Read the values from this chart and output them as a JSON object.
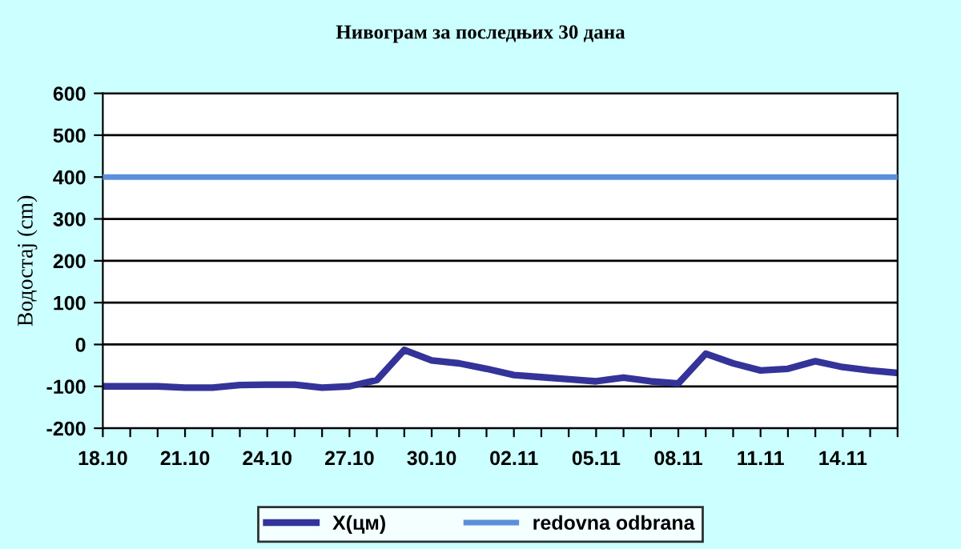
{
  "chart_data": {
    "type": "line",
    "title": "Нивограм за последњих 30 дана",
    "ylabel": "Водостај (cm)",
    "categories": [
      "18.10",
      null,
      null,
      "21.10",
      null,
      null,
      "24.10",
      null,
      null,
      "27.10",
      null,
      null,
      "30.10",
      null,
      null,
      "02.11",
      null,
      null,
      "05.11",
      null,
      null,
      "08.11",
      null,
      null,
      "11.11",
      null,
      null,
      "14.11",
      null,
      null
    ],
    "series": [
      {
        "name": "X(цм)",
        "color": "#333399",
        "values": [
          -100,
          -100,
          -100,
          -103,
          -103,
          -97,
          -96,
          -96,
          -103,
          -100,
          -85,
          -13,
          -38,
          -45,
          -58,
          -73,
          -78,
          -83,
          -88,
          -79,
          -88,
          -93,
          -22,
          -45,
          -62,
          -58,
          -40,
          -54,
          -62,
          -68
        ]
      }
    ],
    "ylim": [
      -200,
      600
    ],
    "yticks": [
      -200,
      -100,
      0,
      100,
      200,
      300,
      400,
      500,
      600
    ],
    "ref_lines": [
      {
        "axis": "y",
        "value": 400,
        "label": "redovna odbrana",
        "color": "#5b8fd9"
      }
    ],
    "grid": "y",
    "legend": "bottom",
    "marker": "none",
    "line_style": "solid"
  }
}
